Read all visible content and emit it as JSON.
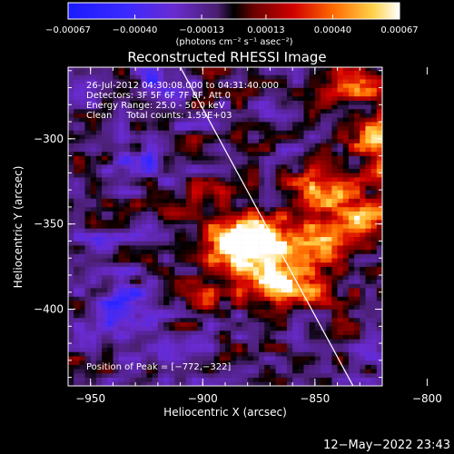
{
  "chart_data": {
    "type": "heatmap",
    "title": "Reconstructed RHESSI Image",
    "xlabel": "Heliocentric X (arcsec)",
    "ylabel": "Heliocentric Y (arcsec)",
    "xlim": [
      -960,
      -820
    ],
    "ylim": [
      -445,
      -258
    ],
    "xticks": [
      -950,
      -900,
      -850,
      -800
    ],
    "yticks": [
      -300,
      -350,
      -400
    ],
    "xtick_labels": [
      "−950",
      "−900",
      "−850",
      "−800"
    ],
    "ytick_labels": [
      "−300",
      "−350",
      "−400"
    ],
    "colorbar": {
      "min": -0.00067,
      "max": 0.00067,
      "ticks": [
        -0.00067,
        -0.0004,
        -0.00013,
        0.00013,
        0.0004,
        0.00067
      ],
      "tick_labels": [
        "−0.00067",
        "−0.00040",
        "−0.00013",
        "0.00013",
        "0.00040",
        "0.00067"
      ],
      "unit_label": "(photons cm⁻² s⁻¹ asec⁻²)"
    },
    "annotations": [
      "26-Jul-2012 04:30:08.000 to 04:31:40.000",
      "Detectors: 3F 5F 6F 7F 8F, Att 0",
      "Energy Range: 25.0 - 50.0 keV",
      "Clean     Total counts: 1.59E+03"
    ],
    "peak_label": "Position of Peak = [−772,−322]",
    "peak": [
      -772,
      -322
    ],
    "limb_line": [
      [
        -910,
        -258
      ],
      [
        -833,
        -445
      ]
    ],
    "grid": false
  },
  "footer": {
    "timestamp": "12−May−2022 23:43"
  },
  "colors": {
    "background": "#000000",
    "foreground": "#ffffff",
    "limb": "#ffffff"
  }
}
